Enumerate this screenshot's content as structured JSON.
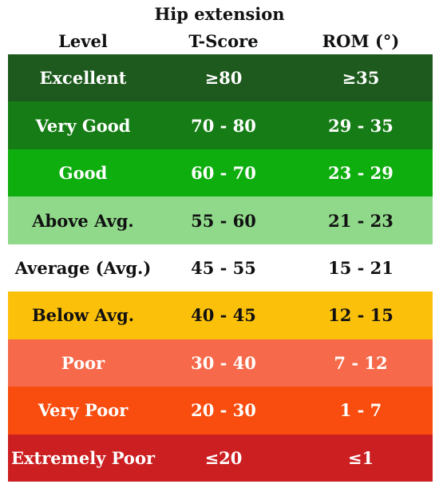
{
  "caption": "Hip extension",
  "headers": {
    "level": "Level",
    "tscore": "T-Score",
    "rom": "ROM (°)"
  },
  "rows": [
    {
      "level": "Excellent",
      "tscore": "≥80",
      "rom": "≥35",
      "color": "#1e5a1e",
      "text_color": "#ffffff"
    },
    {
      "level": "Very Good",
      "tscore": "70  -  80",
      "rom": "29  -  35",
      "color": "#167d16",
      "text_color": "#ffffff"
    },
    {
      "level": "Good",
      "tscore": "60  -  70",
      "rom": "23  -  29",
      "color": "#0fae0f",
      "text_color": "#ffffff"
    },
    {
      "level": "Above Avg.",
      "tscore": "55  -  60",
      "rom": "21  -  23",
      "color": "#90d98a",
      "text_color": "#111111"
    },
    {
      "level": "Average (Avg.)",
      "tscore": "45  -  55",
      "rom": "15  -  21",
      "color": "#ffffff",
      "text_color": "#111111"
    },
    {
      "level": "Below Avg.",
      "tscore": "40  -  45",
      "rom": "12  -  15",
      "color": "#fbc00a",
      "text_color": "#111111"
    },
    {
      "level": "Poor",
      "tscore": "30  -  40",
      "rom": "7  -  12",
      "color": "#f6694a",
      "text_color": "#ffffff"
    },
    {
      "level": "Very Poor",
      "tscore": "20  -  30",
      "rom": "1  -  7",
      "color": "#f84d0f",
      "text_color": "#ffffff"
    },
    {
      "level": "Extremely Poor",
      "tscore": "≤20",
      "rom": "≤1",
      "color": "#cc1f22",
      "text_color": "#ffffff"
    }
  ]
}
